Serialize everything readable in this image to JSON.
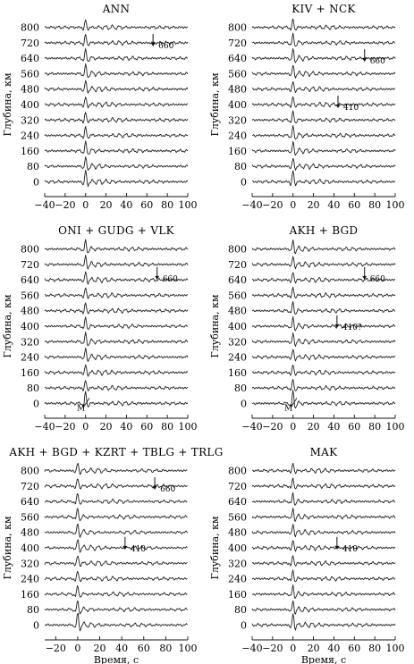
{
  "figure": {
    "x_axis_label": "Время, с",
    "y_axis_label": "Глубина, км"
  },
  "chart_data": [
    {
      "type": "line",
      "title": "ANN",
      "x_ticks": [
        -40,
        -20,
        0,
        20,
        40,
        60,
        80,
        100
      ],
      "y_ticks": [
        800,
        720,
        640,
        560,
        480,
        400,
        320,
        240,
        160,
        80,
        0
      ],
      "xlim": [
        -40,
        100
      ],
      "ylim": [
        -40,
        840
      ],
      "xlabel": "",
      "ylabel": "Глубина, км",
      "traces_depths_km": [
        0,
        80,
        160,
        240,
        320,
        400,
        480,
        560,
        640,
        720,
        800
      ],
      "annotations": [
        {
          "text": "660",
          "x": 66,
          "y": 720
        }
      ]
    },
    {
      "type": "line",
      "title": "KIV + NCK",
      "x_ticks": [
        -40,
        -20,
        0,
        20,
        40,
        60,
        80,
        100
      ],
      "y_ticks": [
        800,
        720,
        640,
        560,
        480,
        400,
        320,
        240,
        160,
        80,
        0
      ],
      "xlim": [
        -40,
        100
      ],
      "ylim": [
        -40,
        840
      ],
      "xlabel": "",
      "ylabel": "Глубина, км",
      "traces_depths_km": [
        0,
        80,
        160,
        240,
        320,
        400,
        480,
        560,
        640,
        720,
        800
      ],
      "annotations": [
        {
          "text": "660",
          "x": 70,
          "y": 640
        },
        {
          "text": "410",
          "x": 44,
          "y": 400
        }
      ]
    },
    {
      "type": "line",
      "title": "ONI + GUDG + VLK",
      "x_ticks": [
        -40,
        -20,
        0,
        20,
        40,
        60,
        80,
        100
      ],
      "y_ticks": [
        800,
        720,
        640,
        560,
        480,
        400,
        320,
        240,
        160,
        80,
        0
      ],
      "xlim": [
        -40,
        100
      ],
      "ylim": [
        -40,
        840
      ],
      "xlabel": "",
      "ylabel": "Глубина, км",
      "traces_depths_km": [
        0,
        80,
        160,
        240,
        320,
        400,
        480,
        560,
        640,
        720,
        800
      ],
      "annotations": [
        {
          "text": "660",
          "x": 70,
          "y": 660
        },
        {
          "text": "M",
          "x": 2,
          "y": 0
        }
      ]
    },
    {
      "type": "line",
      "title": "AKH + BGD",
      "x_ticks": [
        -40,
        -20,
        0,
        20,
        40,
        60,
        80,
        100
      ],
      "y_ticks": [
        800,
        720,
        640,
        560,
        480,
        400,
        320,
        240,
        160,
        80,
        0
      ],
      "xlim": [
        -40,
        100
      ],
      "ylim": [
        -40,
        840
      ],
      "xlabel": "",
      "ylabel": "Глубина, км",
      "traces_depths_km": [
        0,
        80,
        160,
        240,
        320,
        400,
        480,
        560,
        640,
        720,
        800
      ],
      "annotations": [
        {
          "text": "660",
          "x": 70,
          "y": 660
        },
        {
          "text": "410?",
          "x": 43,
          "y": 410
        },
        {
          "text": "M",
          "x": 2,
          "y": 0
        }
      ]
    },
    {
      "type": "line",
      "title": "AKH + BGD + KZRT + TBLG + TRLG",
      "x_ticks": [
        -20,
        0,
        20,
        40,
        60,
        80,
        100
      ],
      "y_ticks": [
        800,
        720,
        640,
        560,
        480,
        400,
        320,
        240,
        160,
        80,
        0
      ],
      "xlim": [
        -30,
        100
      ],
      "ylim": [
        -40,
        840
      ],
      "xlabel": "",
      "ylabel": "Глубина, км",
      "traces_depths_km": [
        0,
        80,
        160,
        240,
        320,
        400,
        480,
        560,
        640,
        720,
        800
      ],
      "annotations": [
        {
          "text": "660",
          "x": 70,
          "y": 720
        },
        {
          "text": "410",
          "x": 43,
          "y": 410
        }
      ]
    },
    {
      "type": "line",
      "title": "MAK",
      "x_ticks": [
        -40,
        -20,
        0,
        20,
        40,
        60,
        80,
        100
      ],
      "y_ticks": [
        800,
        720,
        640,
        560,
        480,
        400,
        320,
        240,
        160,
        80,
        0
      ],
      "xlim": [
        -40,
        100
      ],
      "ylim": [
        -40,
        840
      ],
      "xlabel": "",
      "ylabel": "Глубина, км",
      "traces_depths_km": [
        0,
        80,
        160,
        240,
        320,
        400,
        480,
        560,
        640,
        720,
        800
      ],
      "annotations": [
        {
          "text": "410",
          "x": 43,
          "y": 410
        }
      ]
    }
  ]
}
